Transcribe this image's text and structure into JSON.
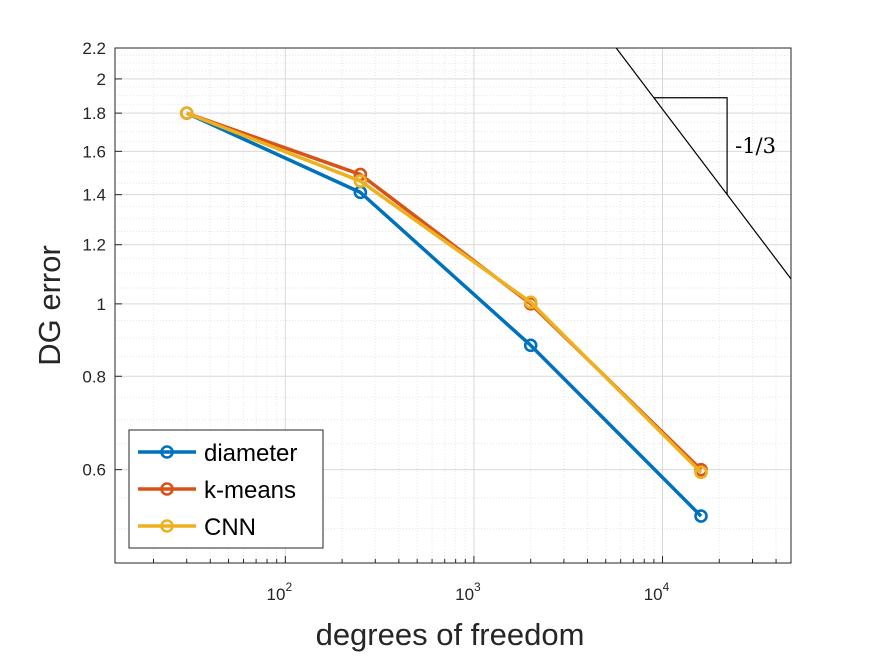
{
  "chart_data": {
    "type": "line",
    "xscale": "log",
    "yscale": "log",
    "title": "",
    "xlabel": "degrees of freedom",
    "ylabel": "DG error",
    "xlim": [
      12.5,
      48000
    ],
    "ylim": [
      0.45,
      2.2
    ],
    "grid": true,
    "minor_grid": true,
    "x_ticks": [
      {
        "value": 100,
        "base": "10",
        "exp": "2"
      },
      {
        "value": 1000,
        "base": "10",
        "exp": "3"
      },
      {
        "value": 10000,
        "base": "10",
        "exp": "4"
      }
    ],
    "y_ticks": [
      {
        "value": 0.6,
        "label": "0.6"
      },
      {
        "value": 0.8,
        "label": "0.8"
      },
      {
        "value": 1.0,
        "label": "1"
      },
      {
        "value": 1.2,
        "label": "1.2"
      },
      {
        "value": 1.4,
        "label": "1.4"
      },
      {
        "value": 1.6,
        "label": "1.6"
      },
      {
        "value": 1.8,
        "label": "1.8"
      },
      {
        "value": 2.0,
        "label": "2"
      },
      {
        "value": 2.2,
        "label": "2.2"
      }
    ],
    "series": [
      {
        "name": "diameter",
        "color": "#0072BD",
        "x": [
          30,
          250,
          2000,
          16000
        ],
        "y": [
          1.8,
          1.41,
          0.88,
          0.52
        ]
      },
      {
        "name": "k-means",
        "color": "#D95319",
        "x": [
          30,
          250,
          2000,
          16000
        ],
        "y": [
          1.8,
          1.49,
          1.0,
          0.6
        ]
      },
      {
        "name": "CNN",
        "color": "#EDB120",
        "x": [
          30,
          250,
          2000,
          16000
        ],
        "y": [
          1.8,
          1.46,
          1.005,
          0.595
        ]
      }
    ],
    "legend": {
      "position": "bottom-left",
      "entries": [
        "diameter",
        "k-means",
        "CNN"
      ]
    },
    "reference_slope": {
      "label": "-1/3",
      "slope": -0.3333,
      "anchor": {
        "x": 5680,
        "y": 2.2
      }
    }
  }
}
